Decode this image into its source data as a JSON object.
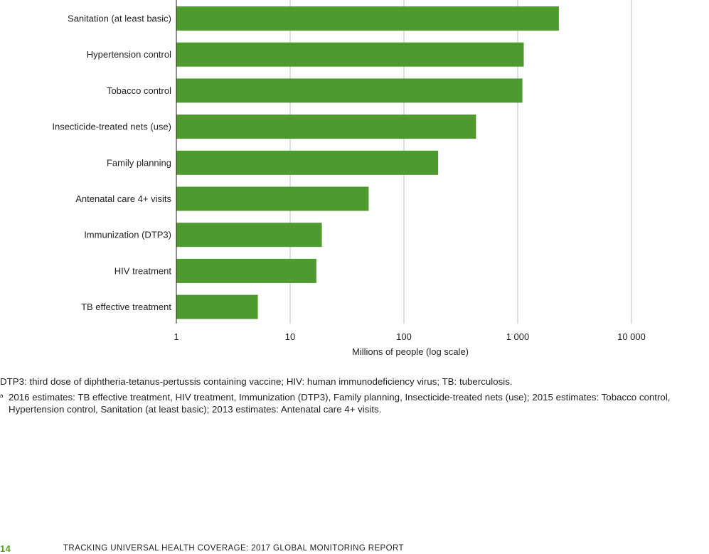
{
  "chart_data": {
    "type": "bar",
    "orientation": "horizontal",
    "categories": [
      "Sanitation (at least basic)",
      "Hypertension control",
      "Tobacco control",
      "Insecticide-treated nets (use)",
      "Family planning",
      "Antenatal care 4+ visits",
      "Immunization (DTP3)",
      "HIV treatment",
      "TB effective treatment"
    ],
    "values": [
      2300,
      1130,
      1100,
      430,
      200,
      49,
      19,
      17,
      5.2
    ],
    "xlabel": "Millions of people (log scale)",
    "ylabel": "",
    "xscale": "log",
    "xlim": [
      1,
      10000
    ],
    "xticks": [
      1,
      10,
      100,
      1000,
      10000
    ],
    "xtick_labels": [
      "1",
      "10",
      "100",
      "1 000",
      "10 000"
    ],
    "grid": "vertical",
    "bar_color": "#4f9a2e"
  },
  "notes": {
    "abbreviations": "DTP3: third dose of diphtheria-tetanus-pertussis containing vaccine; HIV: human immunodeficiency virus; TB: tuberculosis.",
    "footnote_marker": "a",
    "footnote_text": "2016 estimates: TB effective treatment, HIV treatment, Immunization (DTP3), Family planning, Insecticide-treated nets (use); 2015 estimates: Tobacco control, Hypertension control, Sanitation (at least basic); 2013 estimates: Antenatal care 4+ visits."
  },
  "footer": {
    "page_number": "14",
    "report_title": "TRACKING UNIVERSAL HEALTH COVERAGE: 2017 GLOBAL MONITORING REPORT"
  }
}
